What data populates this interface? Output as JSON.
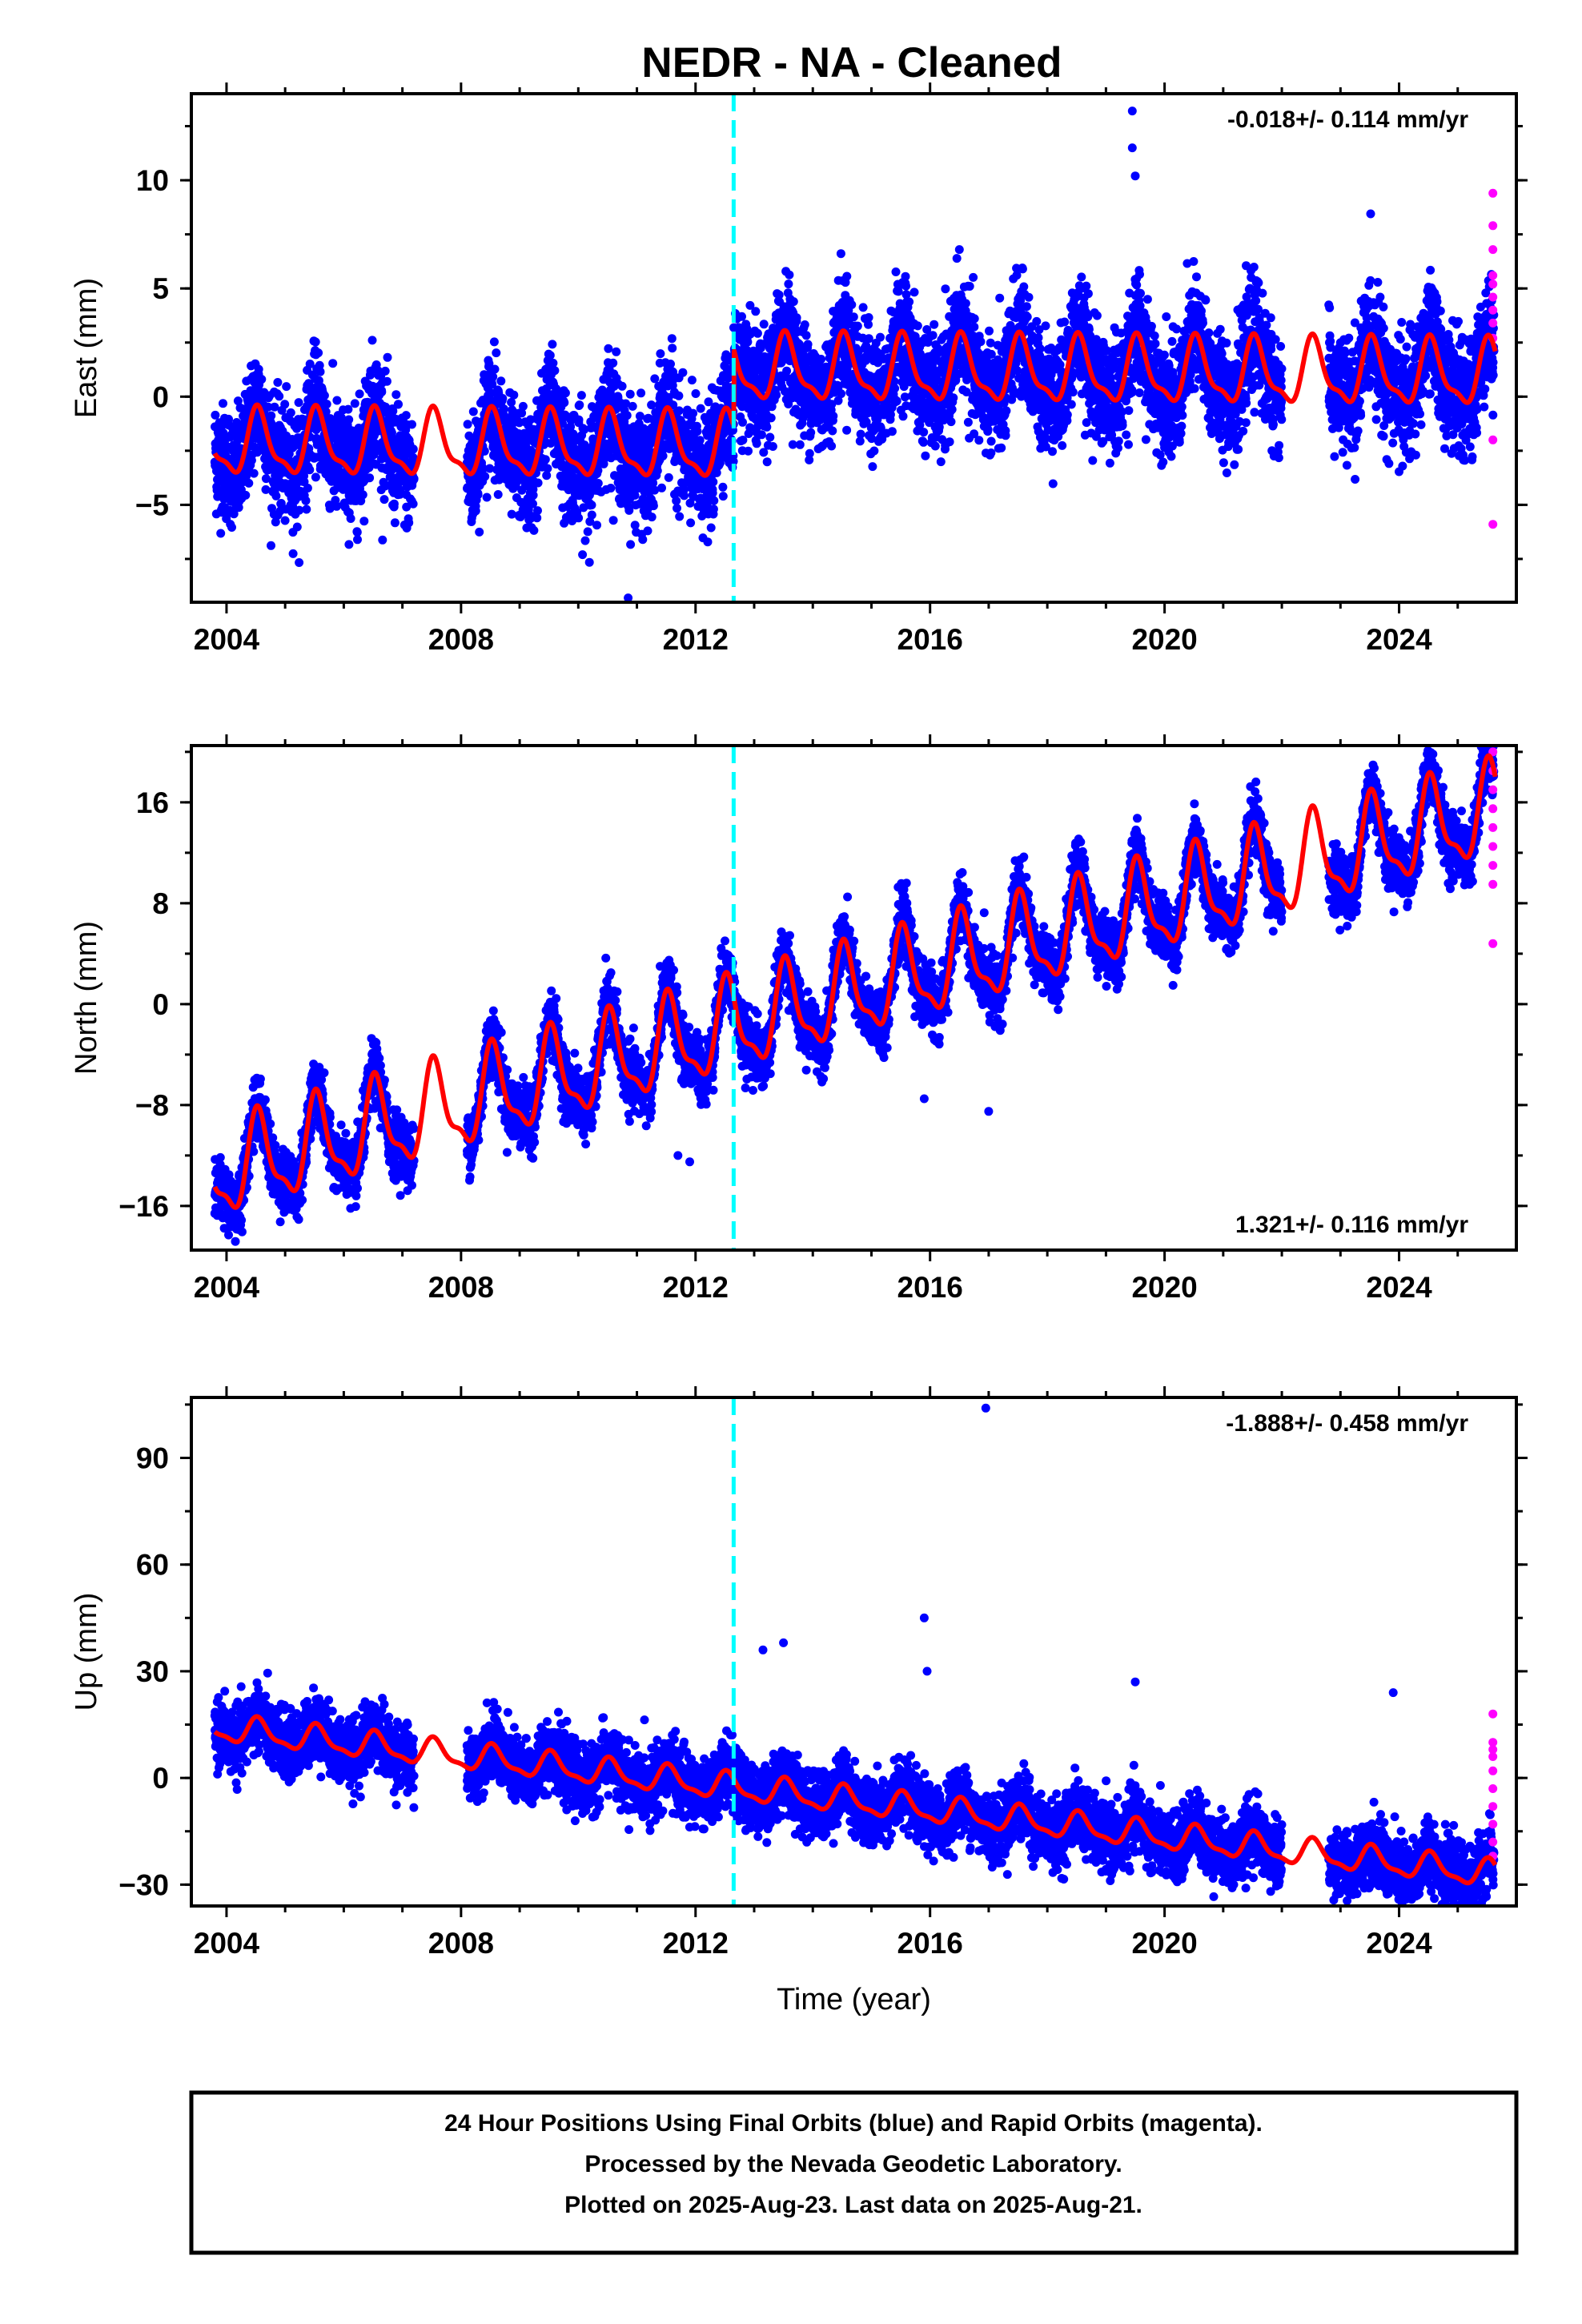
{
  "colors": {
    "final_orbits": "#0000ff",
    "rapid_orbits": "#ff00ff",
    "model": "#ff0000",
    "equipment_change": "#00ffff",
    "frame": "#000000"
  },
  "title": "NEDR  - NA - Cleaned",
  "caption": {
    "lines": [
      "24 Hour Positions Using Final Orbits (blue) and Rapid Orbits (magenta).",
      "Processed by the Nevada Geodetic Laboratory.",
      "Plotted on 2025-Aug-23. Last data on 2025-Aug-21."
    ]
  },
  "chart_data": [
    {
      "type": "scatter",
      "component": "east",
      "ylabel": "East (mm)",
      "xlabel": "",
      "xlim": [
        2003.4,
        2026.0
      ],
      "ylim": [
        -9.5,
        14.0
      ],
      "xticks": [
        "2004",
        "2008",
        "2012",
        "2016",
        "2020",
        "2024"
      ],
      "xtick_values": [
        2004,
        2008,
        2012,
        2016,
        2020,
        2024
      ],
      "yticks": [
        "−5",
        "0",
        "5",
        "10"
      ],
      "ytick_values": [
        -5,
        0,
        5,
        10
      ],
      "rate_label": "-0.018+/- 0.114 mm/yr",
      "rate_mm_yr": -0.018,
      "rate_sigma_mm_yr": 0.114,
      "step_epoch": 2012.65,
      "data_span": [
        2003.8,
        2025.64
      ],
      "gaps": [
        [
          2007.2,
          2008.1
        ],
        [
          2022.0,
          2022.8
        ]
      ],
      "offset_before_step": -2.4,
      "offset_after_step": 1.2,
      "seasonal_amplitude": 1.4,
      "scatter_sd": 1.3,
      "outliers": [
        {
          "x": 2010.85,
          "y": -9.3
        },
        {
          "x": 2019.45,
          "y": 13.2
        },
        {
          "x": 2019.45,
          "y": 11.5
        },
        {
          "x": 2019.5,
          "y": 10.2
        },
        {
          "x": 2016.5,
          "y": 6.8
        }
      ],
      "rapid_points": {
        "x": 2025.6,
        "y": [
          9.4,
          7.9,
          6.8,
          5.6,
          5.2,
          4.6,
          4.0,
          3.4,
          2.7,
          -2.0,
          -5.9
        ]
      }
    },
    {
      "type": "scatter",
      "component": "north",
      "ylabel": "North (mm)",
      "xlabel": "",
      "xlim": [
        2003.4,
        2026.0
      ],
      "ylim": [
        -19.5,
        20.5
      ],
      "xticks": [
        "2004",
        "2008",
        "2012",
        "2016",
        "2020",
        "2024"
      ],
      "xtick_values": [
        2004,
        2008,
        2012,
        2016,
        2020,
        2024
      ],
      "yticks": [
        "−16",
        "−8",
        "0",
        "8",
        "16"
      ],
      "ytick_values": [
        -16,
        -8,
        0,
        8,
        16
      ],
      "rate_label": "1.321+/- 0.116 mm/yr",
      "rate_mm_yr": 1.321,
      "rate_sigma_mm_yr": 0.116,
      "step_epoch": 2012.65,
      "data_span": [
        2003.8,
        2025.64
      ],
      "gaps": [
        [
          2007.2,
          2008.1
        ],
        [
          2022.0,
          2022.8
        ]
      ],
      "start_value": -13.5,
      "seasonal_amplitude": 3.4,
      "scatter_sd": 1.2,
      "outliers": [
        {
          "x": 2011.7,
          "y": -12.0
        },
        {
          "x": 2011.9,
          "y": -12.5
        },
        {
          "x": 2017.0,
          "y": -8.5
        },
        {
          "x": 2015.9,
          "y": -7.5
        }
      ],
      "rapid_points": {
        "x": 2025.6,
        "y": [
          20.0,
          18.5,
          17.0,
          15.5,
          14.0,
          12.5,
          11.0,
          9.5,
          4.8
        ]
      }
    },
    {
      "type": "scatter",
      "component": "up",
      "ylabel": "Up (mm)",
      "xlabel": "Time (year)",
      "xlim": [
        2003.4,
        2026.0
      ],
      "ylim": [
        -36.0,
        107.0
      ],
      "xticks": [
        "2004",
        "2008",
        "2012",
        "2016",
        "2020",
        "2024"
      ],
      "xtick_values": [
        2004,
        2008,
        2012,
        2016,
        2020,
        2024
      ],
      "yticks": [
        "−30",
        "0",
        "30",
        "60",
        "90"
      ],
      "ytick_values": [
        -30,
        0,
        30,
        60,
        90
      ],
      "rate_label": "-1.888+/- 0.458 mm/yr",
      "rate_mm_yr": -1.888,
      "rate_sigma_mm_yr": 0.458,
      "step_epoch": 2012.65,
      "data_span": [
        2003.8,
        2025.64
      ],
      "gaps": [
        [
          2007.2,
          2008.1
        ],
        [
          2022.0,
          2022.8
        ]
      ],
      "start_value": 14.0,
      "seasonal_amplitude": 3.5,
      "scatter_sd": 4.5,
      "outliers": [
        {
          "x": 2016.95,
          "y": 104.0
        },
        {
          "x": 2015.9,
          "y": 45.0
        },
        {
          "x": 2015.95,
          "y": 30.0
        },
        {
          "x": 2013.5,
          "y": 38.0
        },
        {
          "x": 2013.15,
          "y": 36.0
        },
        {
          "x": 2019.5,
          "y": 27.0
        },
        {
          "x": 2023.9,
          "y": 24.0
        }
      ],
      "rapid_points": {
        "x": 2025.6,
        "y": [
          18.0,
          10.0,
          8.0,
          6.0,
          2.0,
          -3.0,
          -8.0,
          -13.0,
          -18.0,
          -22.0
        ]
      }
    }
  ]
}
